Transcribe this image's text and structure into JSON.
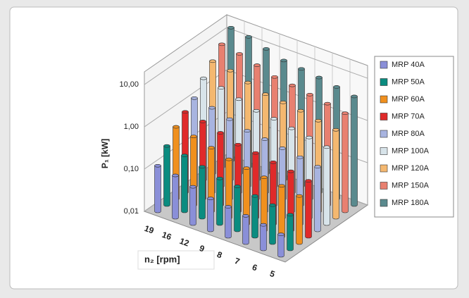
{
  "chart_data": {
    "type": "bar3d",
    "ylabel": "P₁ [kW]",
    "xlabel": "n₂ [rpm]",
    "categories": [
      "19",
      "16",
      "12",
      "9",
      "8",
      "7",
      "6",
      "5"
    ],
    "series": [
      {
        "name": "MRP 40A",
        "color": "#8a8fd8",
        "values": [
          0.12,
          0.1,
          0.076,
          0.057,
          0.051,
          0.044,
          0.038,
          0.032
        ]
      },
      {
        "name": "MRP 50A",
        "color": "#0b8c80",
        "values": [
          0.25,
          0.21,
          0.16,
          0.12,
          0.11,
          0.092,
          0.079,
          0.066
        ]
      },
      {
        "name": "MRP 60A",
        "color": "#f0901e",
        "values": [
          0.5,
          0.42,
          0.32,
          0.24,
          0.21,
          0.18,
          0.16,
          0.13
        ]
      },
      {
        "name": "MRP 70A",
        "color": "#e02a2a",
        "values": [
          0.8,
          0.67,
          0.51,
          0.38,
          0.34,
          0.29,
          0.25,
          0.21
        ]
      },
      {
        "name": "MRP 80A",
        "color": "#a8b4e0",
        "values": [
          1.2,
          1.0,
          0.76,
          0.57,
          0.51,
          0.44,
          0.38,
          0.32
        ]
      },
      {
        "name": "MRP 100A",
        "color": "#d8e4ea",
        "values": [
          2.5,
          2.1,
          1.6,
          1.2,
          1.1,
          0.92,
          0.79,
          0.66
        ]
      },
      {
        "name": "MRP 120A",
        "color": "#f4b870",
        "values": [
          4.5,
          3.8,
          2.8,
          2.1,
          1.9,
          1.7,
          1.4,
          1.2
        ]
      },
      {
        "name": "MRP 150A",
        "color": "#e88070",
        "values": [
          8,
          6.7,
          5.1,
          3.8,
          3.4,
          2.9,
          2.5,
          2.1
        ]
      },
      {
        "name": "MRP 180A",
        "color": "#5a8a8e",
        "values": [
          14,
          12,
          8.8,
          6.6,
          5.9,
          5.2,
          4.4,
          3.7
        ]
      }
    ],
    "ylim": [
      0.01,
      20
    ],
    "yticks": [
      {
        "value": 0.01,
        "label": "0,01"
      },
      {
        "value": 0.1,
        "label": "0,10"
      },
      {
        "value": 1,
        "label": "1,00"
      },
      {
        "value": 10,
        "label": "10,00"
      }
    ],
    "log_scale": true,
    "grid": true,
    "legend": "right"
  }
}
